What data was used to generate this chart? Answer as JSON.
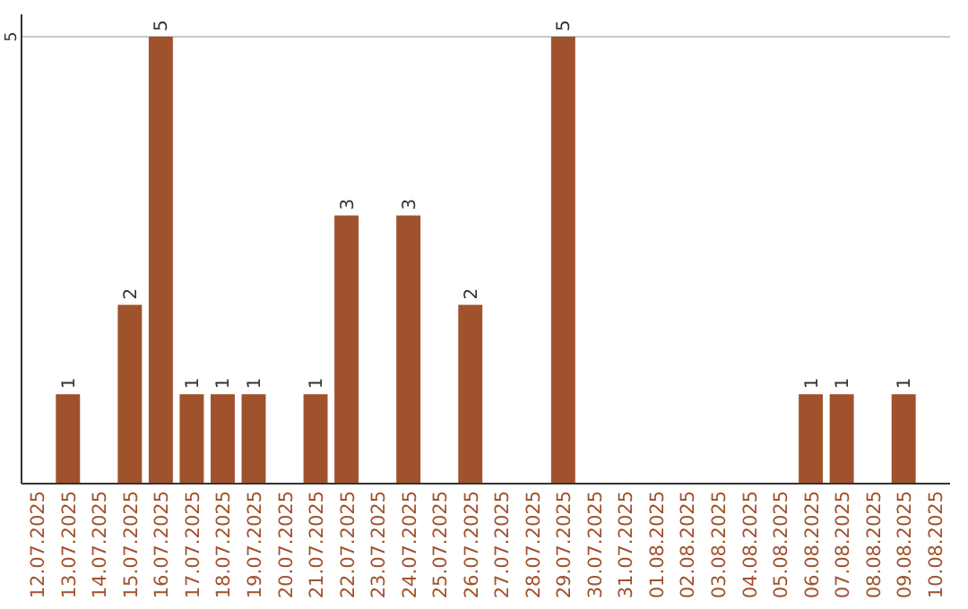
{
  "chart_data": {
    "type": "bar",
    "categories": [
      "12.07.2025",
      "13.07.2025",
      "14.07.2025",
      "15.07.2025",
      "16.07.2025",
      "17.07.2025",
      "18.07.2025",
      "19.07.2025",
      "20.07.2025",
      "21.07.2025",
      "22.07.2025",
      "23.07.2025",
      "24.07.2025",
      "25.07.2025",
      "26.07.2025",
      "27.07.2025",
      "28.07.2025",
      "29.07.2025",
      "30.07.2025",
      "31.07.2025",
      "01.08.2025",
      "02.08.2025",
      "03.08.2025",
      "04.08.2025",
      "05.08.2025",
      "06.08.2025",
      "07.08.2025",
      "08.08.2025",
      "09.08.2025",
      "10.08.2025"
    ],
    "values": [
      0,
      1,
      0,
      2,
      5,
      1,
      1,
      1,
      0,
      1,
      3,
      0,
      3,
      0,
      2,
      0,
      0,
      5,
      0,
      0,
      0,
      0,
      0,
      0,
      0,
      1,
      1,
      0,
      1,
      0
    ],
    "value_labels": [
      null,
      "1",
      null,
      "2",
      "5",
      "1",
      "1",
      "1",
      null,
      "1",
      "3",
      null,
      "3",
      null,
      "2",
      null,
      null,
      "5",
      null,
      null,
      null,
      null,
      null,
      null,
      null,
      "1",
      "1",
      null,
      "1",
      null
    ],
    "color": "#a0522d",
    "ylim": [
      0,
      5.25
    ],
    "yticks": [
      5
    ],
    "grid": "y"
  }
}
